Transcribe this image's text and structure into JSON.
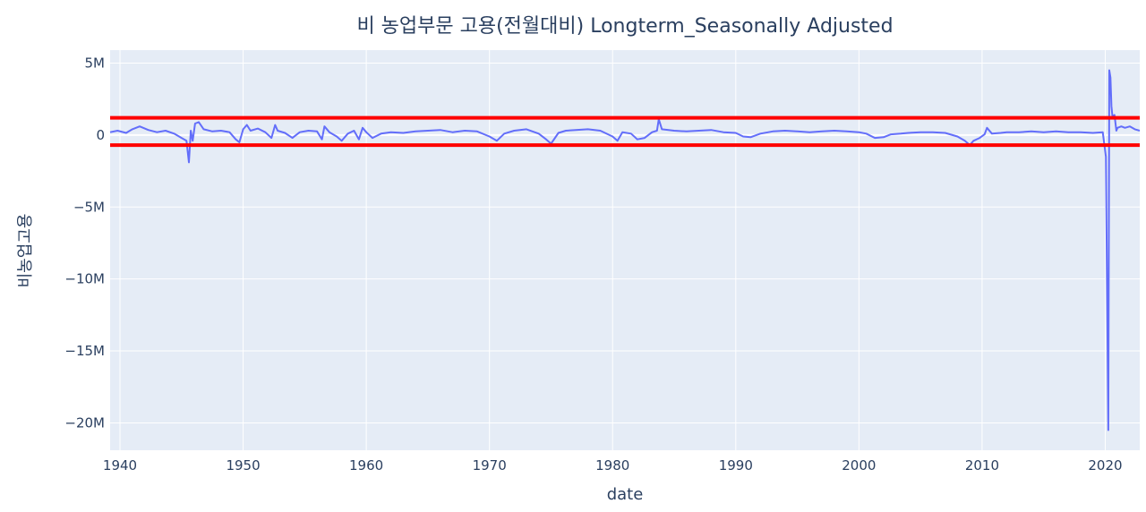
{
  "chart_data": {
    "type": "line",
    "title": "비 농업부문 고용(전월대비) Longterm_Seasonally Adjusted",
    "xlabel": "date",
    "ylabel": "비농업고용",
    "xlim": [
      1939.2,
      2022.8
    ],
    "ylim": [
      -21900000,
      5900000
    ],
    "x_ticks": [
      "1940",
      "1950",
      "1960",
      "1970",
      "1980",
      "1990",
      "2000",
      "2010",
      "2020"
    ],
    "y_ticks": [
      {
        "value": 5000000,
        "label": "5M"
      },
      {
        "value": 0,
        "label": "0"
      },
      {
        "value": -5000000,
        "label": "−5M"
      },
      {
        "value": -10000000,
        "label": "−10M"
      },
      {
        "value": -15000000,
        "label": "−15M"
      },
      {
        "value": -20000000,
        "label": "−20M"
      }
    ],
    "grid": true,
    "colors": {
      "series": "#636efa",
      "bounds": "#ff0000",
      "plot_bg": "#e5ecf6"
    },
    "bounds": [
      1200000,
      -700000
    ],
    "series": [
      {
        "x": [
          1939.2,
          1939.8,
          1940.5,
          1941.0,
          1941.6,
          1942.3,
          1943.0,
          1943.7,
          1944.4,
          1945.0,
          1945.4,
          1945.6,
          1945.75,
          1945.9,
          1946.1,
          1946.4,
          1946.8,
          1947.5,
          1948.2,
          1948.9,
          1949.4,
          1949.7,
          1950.0,
          1950.3,
          1950.6,
          1951.2,
          1951.8,
          1952.3,
          1952.6,
          1952.8,
          1953.4,
          1954.0,
          1954.6,
          1955.3,
          1956.0,
          1956.4,
          1956.6,
          1957.0,
          1957.6,
          1958.0,
          1958.5,
          1959.0,
          1959.4,
          1959.7,
          1960.0,
          1960.5,
          1961.2,
          1962.0,
          1963.0,
          1964.0,
          1965.0,
          1966.0,
          1967.0,
          1968.0,
          1969.0,
          1970.0,
          1970.6,
          1971.2,
          1972.0,
          1973.0,
          1974.0,
          1974.6,
          1975.0,
          1975.6,
          1976.2,
          1977.0,
          1978.0,
          1979.0,
          1980.0,
          1980.4,
          1980.8,
          1981.5,
          1982.0,
          1982.6,
          1983.2,
          1983.6,
          1983.75,
          1984.0,
          1985.0,
          1986.0,
          1987.0,
          1988.0,
          1989.0,
          1990.0,
          1990.6,
          1991.2,
          1992.0,
          1993.0,
          1994.0,
          1995.0,
          1996.0,
          1997.0,
          1998.0,
          1999.0,
          2000.0,
          2000.6,
          2001.3,
          2002.0,
          2002.6,
          2003.4,
          2004.0,
          2005.0,
          2006.0,
          2007.0,
          2008.0,
          2008.6,
          2009.0,
          2009.3,
          2009.8,
          2010.2,
          2010.4,
          2010.8,
          2011.5,
          2012.0,
          2013.0,
          2014.0,
          2015.0,
          2016.0,
          2017.0,
          2018.0,
          2019.0,
          2019.8,
          2020.05,
          2020.25,
          2020.33,
          2020.42,
          2020.5,
          2020.58,
          2020.75,
          2020.9,
          2021.0,
          2021.3,
          2021.6,
          2022.0,
          2022.4,
          2022.8
        ],
        "values": [
          200000,
          300000,
          150000,
          400000,
          600000,
          350000,
          200000,
          300000,
          100000,
          -200000,
          -400000,
          -1900000,
          300000,
          -400000,
          800000,
          900000,
          400000,
          250000,
          300000,
          200000,
          -300000,
          -500000,
          400000,
          700000,
          300000,
          450000,
          200000,
          -200000,
          700000,
          300000,
          150000,
          -200000,
          200000,
          300000,
          250000,
          -300000,
          600000,
          200000,
          -100000,
          -400000,
          100000,
          300000,
          -300000,
          500000,
          200000,
          -200000,
          100000,
          200000,
          150000,
          250000,
          300000,
          350000,
          200000,
          300000,
          250000,
          -100000,
          -400000,
          100000,
          300000,
          400000,
          100000,
          -300000,
          -600000,
          150000,
          300000,
          350000,
          400000,
          300000,
          -100000,
          -400000,
          200000,
          100000,
          -300000,
          -200000,
          200000,
          300000,
          1100000,
          400000,
          300000,
          250000,
          300000,
          350000,
          200000,
          150000,
          -100000,
          -150000,
          100000,
          250000,
          300000,
          250000,
          200000,
          250000,
          300000,
          250000,
          200000,
          100000,
          -200000,
          -150000,
          50000,
          100000,
          150000,
          200000,
          200000,
          150000,
          -100000,
          -400000,
          -700000,
          -400000,
          -200000,
          50000,
          500000,
          100000,
          150000,
          200000,
          200000,
          250000,
          200000,
          250000,
          200000,
          200000,
          150000,
          200000,
          -1500000,
          -20500000,
          4500000,
          4000000,
          2000000,
          1300000,
          1400000,
          300000,
          500000,
          600000,
          500000,
          600000,
          400000,
          300000
        ]
      }
    ]
  }
}
